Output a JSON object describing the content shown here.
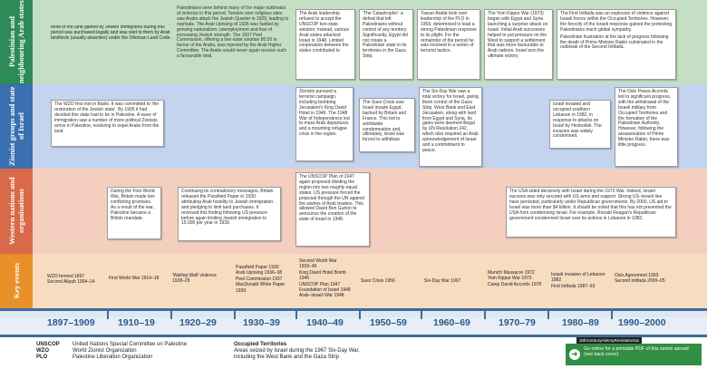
{
  "colors": {
    "band1": "#c4dfc4",
    "band1_label": "#2e8b57",
    "band2": "#c4d4ee",
    "band2_label": "#3a6fb0",
    "band3": "#f4cfbf",
    "band3_label": "#d86a4a",
    "band4": "#f8dcc0",
    "band4_label": "#e8902a",
    "timeline": "#3a6e9e",
    "promo": "#2f8f43"
  },
  "bands": [
    {
      "label": "Palestinian and neighbouring Arab states"
    },
    {
      "label": "Zionist groups and state of Israel"
    },
    {
      "label": "Western nations and organisations"
    },
    {
      "label": "Key events"
    }
  ],
  "palestinian": {
    "p1": "Most of the land gained by Jewish immigrants during this period was purchased legally and was sold to them by Arab landlords (usually absentee) under the Ottoman Land Code.",
    "p2": "Palestinians were behind many of the major outbreaks of violence in this period. Tension over religious sites saw Arabs attack the Jewish Quarter in 1929, leading to reprisals. The Arab Uprising of 1936 was fuelled by growing nationalism, unemployment and fear of increasing Jewish strength. The 1937 Peel Commission, offering a two-state solution 80:20 in favour of the Arabs, was rejected by the Arab Higher Committee. The Arabs would never again receive such a favourable deal.",
    "p3": "The Arab leadership refused to accept the UNSCOP two-state solution; instead, various Arab states attacked Israel in 1948. Limited cooperation between the states contributed to",
    "p4": "'The Catastrophe': a defeat that left Palestinians without control of any territory. Significantly, Egypt did not create a Palestinian state in its territories in the Gaza Strip.",
    "p5": "Yasser Arafat took over leadership of the PLO in 1969, determined to lead a strong Palestinian response to its plight. For the remainder of the period he was involved in a series of terrorist tactics.",
    "p6": "The Yom Kippur War (1973) began with Egypt and Syria launching a surprise attack on Israel. Initial Arab successes helped to put pressure on the West to support a settlement that was more favourable to Arab nations. Israel won the ultimate victory.",
    "p7": "The First Intifada was an explosion of violence against Israeli forces within the Occupied Territories. However, the ferocity of the Israeli response gained the protesting Palestinians much global sympathy.",
    "p7b": "Palestinian frustration at the lack of progress following the death of Prime Minister Rabin culminated in the outbreak of the Second Intifada."
  },
  "zionist": {
    "z1": "The WZO first met in Basle. It was committed to 'the restoration of the Jewish state'. By 1905 it had decided this state had to be in Palestine. A wave of immigration saw a number of more political Zionists arrive in Palestine, resolving to expel Arabs from the land.",
    "z2": "Zionists pursued a terrorist campaign, including bombing Jerusalem's King David Hotel in 1946. The 1948 War of Independence led to mass Arab departures and a mounting refugee crisis in the region.",
    "z3": "The Suez Crisis saw Israel invade Egypt, backed by Britain and France. This led to worldwide condemnation and, ultimately, Israel was forced to withdraw.",
    "z4": "The Six-Day War saw a total victory for Israel, giving them control of the Gaza Strip, West Bank and East Jerusalem, along with land from Egypt and Syria. Its gains were deemed illegal by UN Resolution 242, which also required an Arab acknowledgement of Israel and a commitment to peace.",
    "z5": "Israel invaded and occupied southern Lebanon in 1982, in response to attacks on Israel by Hezbollah. The invasion was widely condemned.",
    "z6": "The Oslo Peace Accords led to significant progress, with the withdrawal of the Israeli military from Occupied Territories and the formation of the Palestinian Authority. However, following the assassination of Prime Minister Rabin, there was little progress."
  },
  "western": {
    "w1": "During the First World War, Britain made two conflicting promises. As a result of the war, Palestine became a British mandate.",
    "w2": "Continuing its contradictory messages, Britain released the Passfield Paper in 1930, attributing Arab hostility to Jewish immigration and pledging to limit land purchases. It reversed this finding following US pressure before again limiting Jewish immigration to 15,000 per year in 1939.",
    "w3": "The UNSCOP Plan of 1947 again proposed dividing the region into two roughly equal states. US pressure forced the proposal through the UN against the wishes of Arab leaders. This allowed David Ben Gurion to announce the creation of the state of Israel in 1948.",
    "w4": "The USA sided decisively with Israel during the 1973 War. Indeed, Israeli success was only secured with US arms and support. Strong US–Israeli ties have persisted, particularly under Republican governments. By 2000, US aid to Israel was more than $4 billion. It should be noted that this has not prevented the USA from condemning Israel. For example, Ronald Reagan's Republican government condemned Israel over its actions in Lebanon in 1982."
  },
  "key_events": {
    "c1": [
      "WZO formed 1897",
      "Second Aliyah 1904–14"
    ],
    "c2": [
      "First World War 1914–18"
    ],
    "c3": [
      "'Wailing Wall' violence",
      "1928–29"
    ],
    "c4": [
      "Passfield Paper 1930",
      "Arab Uprising 1936–38",
      "Peel Commission 1937",
      "MacDonald White Paper",
      "1939"
    ],
    "c5": [
      "Second World War",
      "1939–45",
      "King David Hotel Bomb",
      "1946",
      "UNSCOP Plan 1947",
      "Foundation of Israel 1948",
      "Arab–Israeli War 1948"
    ],
    "c6": [
      "Suez Crisis 1956"
    ],
    "c7": [
      "Six-Day War 1967"
    ],
    "c8": [
      "Munich Massacre 1972",
      "Yom Kippur War 1973",
      "Camp David Accords 1978"
    ],
    "c9": [
      "Israeli invasion of Lebanon",
      "1982",
      "First Intifada 1987–93"
    ],
    "c10": [
      "Oslo Agreement 1993",
      "Second Intifada 2000–05"
    ]
  },
  "decades": [
    "1897–1909",
    "1910–19",
    "1920–29",
    "1930–39",
    "1940–49",
    "1950–59",
    "1960–69",
    "1970–79",
    "1980–89",
    "1990–2000"
  ],
  "legend": {
    "r1_abbr": "UNSCOP",
    "r1_text": "United Nations Special Committee on Palestine",
    "r2_abbr": "WZO",
    "r2_text": "World Zionist Organization",
    "r3_abbr": "PLO",
    "r3_text": "Palestine Liberation Organization",
    "occ_title": "Occupied Territories",
    "occ_text1": "Areas seized by Israel during the 1967 Six-Day War,",
    "occ_text2": "including the West Bank and the Gaza Strip"
  },
  "promo": {
    "tag": "20thCenturyHistoryReviewExtras",
    "text": "Go online for a printable PDF of this centre spread (see back cover)."
  }
}
